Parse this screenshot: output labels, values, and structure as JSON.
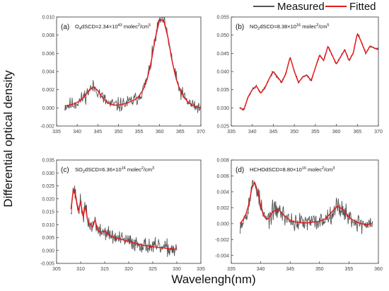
{
  "figure": {
    "ylabel": "Differential optical density",
    "xlabel": "Wavelengh(nm)",
    "legend": {
      "items": [
        {
          "label": "Measured",
          "color": "#555555"
        },
        {
          "label": "Fitted",
          "color": "#e41a1c"
        }
      ],
      "placement": "top-right"
    }
  },
  "chart_data": [
    {
      "type": "line",
      "panel_label": "(a)",
      "annotation": {
        "species": "O",
        "sub": "4",
        "mid": "dSCD=2.34×10",
        "sup": "43",
        "unit": " molec",
        "unit_sup": "2",
        "unit_tail": "/cm",
        "tail_sup": "5"
      },
      "xlim": [
        335,
        370
      ],
      "ylim": [
        -0.002,
        0.01
      ],
      "xticks": [
        335,
        340,
        345,
        350,
        355,
        360,
        365,
        370
      ],
      "yticks": [
        -0.002,
        0.0,
        0.002,
        0.004,
        0.006,
        0.008,
        0.01
      ],
      "ytick_labels": [
        "-0.002",
        "0.000",
        "0.002",
        "0.004",
        "0.006",
        "0.008",
        "0.010"
      ],
      "x_range": [
        337,
        370
      ],
      "fitted_x": [
        337,
        338,
        339,
        340,
        341,
        342,
        343,
        344,
        345,
        346,
        347,
        348,
        349,
        350,
        351,
        352,
        353,
        354,
        355,
        356,
        357,
        358,
        359,
        360,
        361,
        362,
        363,
        364,
        365,
        366,
        367,
        368,
        369,
        370
      ],
      "fitted_y": [
        0.0002,
        0.0003,
        0.0004,
        0.0006,
        0.0009,
        0.0014,
        0.002,
        0.0023,
        0.0019,
        0.0012,
        0.0007,
        0.0004,
        0.0003,
        0.0003,
        0.0004,
        0.0005,
        0.0007,
        0.0009,
        0.0013,
        0.002,
        0.0032,
        0.0052,
        0.0078,
        0.0097,
        0.0096,
        0.0078,
        0.0052,
        0.0032,
        0.0019,
        0.0011,
        0.0006,
        0.0003,
        0.0001,
        0.0
      ],
      "measured_noise": 0.0008,
      "noise_seed": 11
    },
    {
      "type": "line",
      "panel_label": "(b)",
      "annotation": {
        "species": "NO",
        "sub": "2",
        "mid": "dSCD=8.38×10",
        "sup": "16",
        "unit": " molec",
        "unit_sup": "2",
        "unit_tail": "/cm",
        "tail_sup": "5"
      },
      "xlim": [
        335,
        370
      ],
      "ylim": [
        0.025,
        0.055
      ],
      "xticks": [
        335,
        340,
        345,
        350,
        355,
        360,
        365,
        370
      ],
      "yticks": [
        0.025,
        0.03,
        0.035,
        0.04,
        0.045,
        0.05,
        0.055
      ],
      "ytick_labels": [
        "0.025",
        "0.030",
        "0.035",
        "0.040",
        "0.045",
        "0.050",
        "0.055"
      ],
      "x_range": [
        337,
        370
      ],
      "fitted_x": [
        337,
        338,
        339,
        340,
        341,
        342,
        343,
        344,
        345,
        346,
        347,
        348,
        349,
        350,
        351,
        352,
        353,
        354,
        355,
        356,
        357,
        358,
        359,
        360,
        361,
        362,
        363,
        364,
        365,
        366,
        367,
        368,
        369,
        370
      ],
      "fitted_y": [
        0.03,
        0.0295,
        0.033,
        0.035,
        0.036,
        0.034,
        0.0355,
        0.038,
        0.04,
        0.0385,
        0.037,
        0.0395,
        0.044,
        0.04,
        0.037,
        0.0385,
        0.039,
        0.0375,
        0.041,
        0.0445,
        0.043,
        0.047,
        0.0445,
        0.042,
        0.044,
        0.046,
        0.043,
        0.045,
        0.0505,
        0.048,
        0.045,
        0.047,
        0.0465,
        0.046
      ],
      "measured_noise": 0.0004,
      "noise_seed": 23
    },
    {
      "type": "line",
      "panel_label": "(c)",
      "annotation": {
        "species": "SO",
        "sub": "2",
        "mid": "dSCD=6.36×10",
        "sup": "16",
        "unit": " molec",
        "unit_sup": "2",
        "unit_tail": "/cm",
        "tail_sup": "3"
      },
      "xlim": [
        305,
        335
      ],
      "ylim": [
        -0.005,
        0.035
      ],
      "xticks": [
        305,
        310,
        315,
        320,
        325,
        330,
        335
      ],
      "yticks": [
        -0.005,
        0.0,
        0.005,
        0.01,
        0.015,
        0.02,
        0.025,
        0.03,
        0.035
      ],
      "ytick_labels": [
        "-0.005",
        "0.000",
        "0.005",
        "0.010",
        "0.015",
        "0.020",
        "0.025",
        "0.030",
        "0.035"
      ],
      "x_range": [
        308,
        330
      ],
      "fitted_x": [
        308,
        308.5,
        309,
        309.5,
        310,
        310.5,
        311,
        311.5,
        312,
        312.5,
        313,
        313.5,
        314,
        315,
        316,
        317,
        318,
        319,
        320,
        321,
        322,
        323,
        324,
        325,
        326,
        327,
        328,
        329,
        330
      ],
      "fitted_y": [
        0.016,
        0.024,
        0.021,
        0.015,
        0.019,
        0.013,
        0.017,
        0.011,
        0.01,
        0.009,
        0.012,
        0.008,
        0.007,
        0.0075,
        0.006,
        0.005,
        0.0045,
        0.004,
        0.0035,
        0.003,
        0.0025,
        0.002,
        0.0018,
        0.0015,
        0.0012,
        0.001,
        0.0008,
        0.0006,
        0.0005
      ],
      "measured_noise": 0.003,
      "noise_seed": 37
    },
    {
      "type": "line",
      "panel_label": "(d)",
      "annotation": {
        "species": "HCHO",
        "sub": "",
        "mid": "dSCD=8.80×10",
        "sup": "16",
        "unit": " molec",
        "unit_sup": "2",
        "unit_tail": "/cm",
        "tail_sup": "3"
      },
      "xlim": [
        335,
        360
      ],
      "ylim": [
        -0.005,
        0.008
      ],
      "xticks": [
        335,
        340,
        345,
        350,
        355,
        360
      ],
      "yticks": [
        -0.004,
        -0.002,
        0.0,
        0.002,
        0.004,
        0.006,
        0.008
      ],
      "ytick_labels": [
        "-0.004",
        "-0.002",
        "0.000",
        "0.002",
        "0.004",
        "0.006",
        "0.008"
      ],
      "x_range": [
        336.5,
        359
      ],
      "fitted_x": [
        336.5,
        337,
        337.5,
        338,
        338.5,
        339,
        339.5,
        340,
        340.5,
        341,
        341.5,
        342,
        343,
        344,
        345,
        346,
        347,
        348,
        349,
        350,
        351,
        352,
        353,
        354,
        355,
        356,
        357,
        358,
        359
      ],
      "fitted_y": [
        0.0,
        0.0005,
        0.0012,
        0.0025,
        0.0045,
        0.0052,
        0.004,
        0.0022,
        0.001,
        0.0005,
        0.0008,
        0.0015,
        0.0018,
        0.001,
        0.0004,
        0.0002,
        0.0001,
        0.0001,
        0.0002,
        0.0003,
        0.0006,
        0.0014,
        0.0022,
        0.0018,
        0.0008,
        0.0003,
        0.0,
        -0.0001,
        0.0
      ],
      "measured_noise": 0.0012,
      "noise_seed": 53
    }
  ]
}
